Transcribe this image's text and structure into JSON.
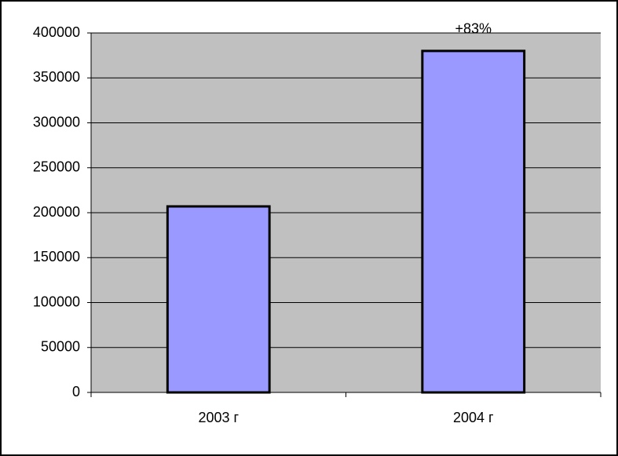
{
  "chart_data": {
    "type": "bar",
    "categories": [
      "2003 г",
      "2004 г"
    ],
    "values": [
      207000,
      380000
    ],
    "color": "#9999ff",
    "annotation": "+83%",
    "ylim": [
      0,
      400000
    ],
    "yticks": [
      0,
      50000,
      100000,
      150000,
      200000,
      250000,
      300000,
      350000,
      400000
    ],
    "grid": true
  }
}
